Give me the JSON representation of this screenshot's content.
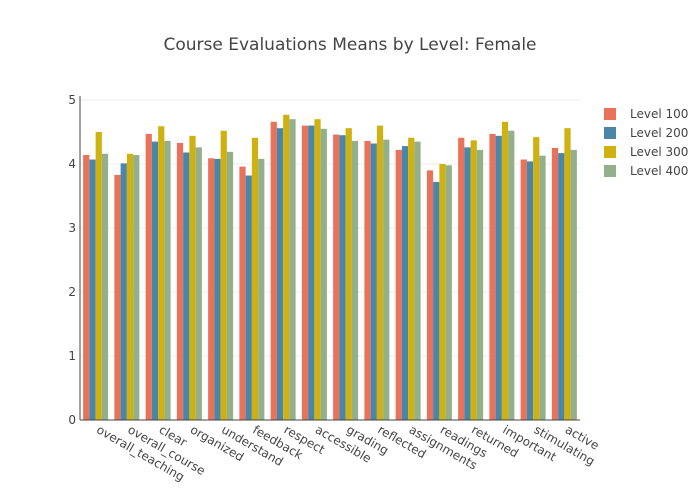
{
  "colors": {
    "Level 100": "#e8735a",
    "Level 200": "#4a86a8",
    "Level 300": "#cfb212",
    "Level 400": "#93b08a",
    "axis": "#444444",
    "grid": "#eeeeee"
  },
  "chart_data": {
    "type": "bar",
    "title": "Course Evaluations Means by Level: Female",
    "xlabel": "",
    "ylabel": "",
    "ylim": [
      0,
      5
    ],
    "yticks": [
      0,
      1,
      2,
      3,
      4,
      5
    ],
    "grid": true,
    "legend": {
      "position": "top-right"
    },
    "categories": [
      "overall_teaching",
      "overall_course",
      "clear",
      "organized",
      "understand",
      "feedback",
      "respect",
      "accessible",
      "grading",
      "reflected",
      "assignments",
      "readings",
      "returned",
      "important",
      "stimulating",
      "active"
    ],
    "series": [
      {
        "name": "Level 100",
        "values": [
          4.14,
          3.83,
          4.47,
          4.33,
          4.09,
          3.96,
          4.66,
          4.6,
          4.46,
          4.36,
          4.22,
          3.9,
          4.41,
          4.47,
          4.07,
          4.25
        ]
      },
      {
        "name": "Level 200",
        "values": [
          4.07,
          4.01,
          4.35,
          4.18,
          4.08,
          3.82,
          4.56,
          4.6,
          4.45,
          4.32,
          4.28,
          3.72,
          4.26,
          4.44,
          4.04,
          4.17
        ]
      },
      {
        "name": "Level 300",
        "values": [
          4.5,
          4.16,
          4.59,
          4.44,
          4.52,
          4.41,
          4.77,
          4.7,
          4.56,
          4.6,
          4.41,
          4.0,
          4.37,
          4.66,
          4.42,
          4.56
        ]
      },
      {
        "name": "Level 400",
        "values": [
          4.16,
          4.14,
          4.36,
          4.26,
          4.19,
          4.08,
          4.7,
          4.55,
          4.36,
          4.38,
          4.35,
          3.98,
          4.22,
          4.52,
          4.13,
          4.22
        ]
      }
    ]
  }
}
